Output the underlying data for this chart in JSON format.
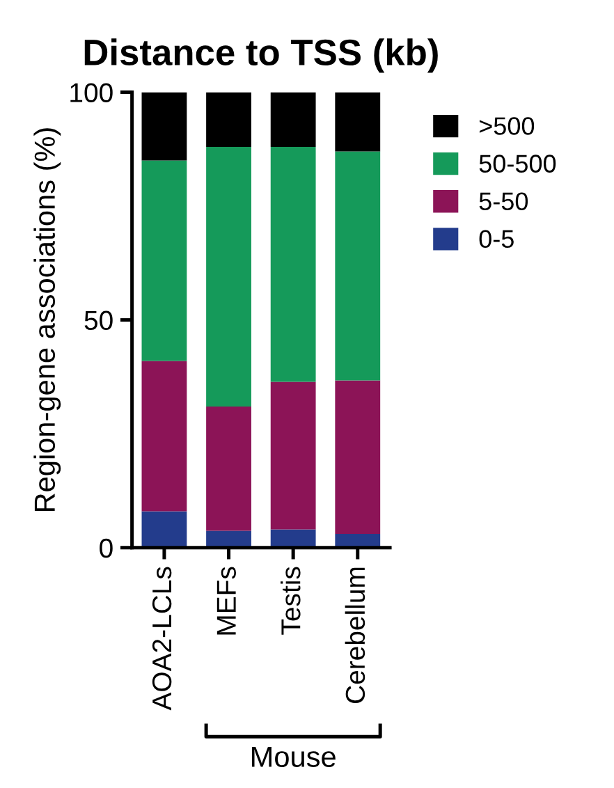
{
  "chart_data": {
    "type": "bar",
    "title": "Distance to TSS (kb)",
    "ylabel": "Region-gene associations (%)",
    "categories": [
      "AOA2-LCLs",
      "MEFs",
      "Testis",
      "Cerebellum"
    ],
    "stacked": true,
    "ylim": [
      0,
      100
    ],
    "yticks": [
      0,
      50,
      100
    ],
    "grid": false,
    "legend": "top right",
    "series": [
      {
        "name": "0-5",
        "color": "#233c8c",
        "values": [
          8,
          3.7,
          4,
          3
        ]
      },
      {
        "name": "5-50",
        "color": "#8c1457",
        "values": [
          33,
          27.3,
          32.4,
          33.7
        ]
      },
      {
        "name": "50-500",
        "color": "#159a5a",
        "values": [
          44,
          57,
          51.6,
          50.3
        ]
      },
      {
        "name": ">500",
        "color": "#000000",
        "values": [
          15,
          12,
          12,
          13
        ]
      }
    ],
    "annotations": [
      "Mouse"
    ]
  }
}
